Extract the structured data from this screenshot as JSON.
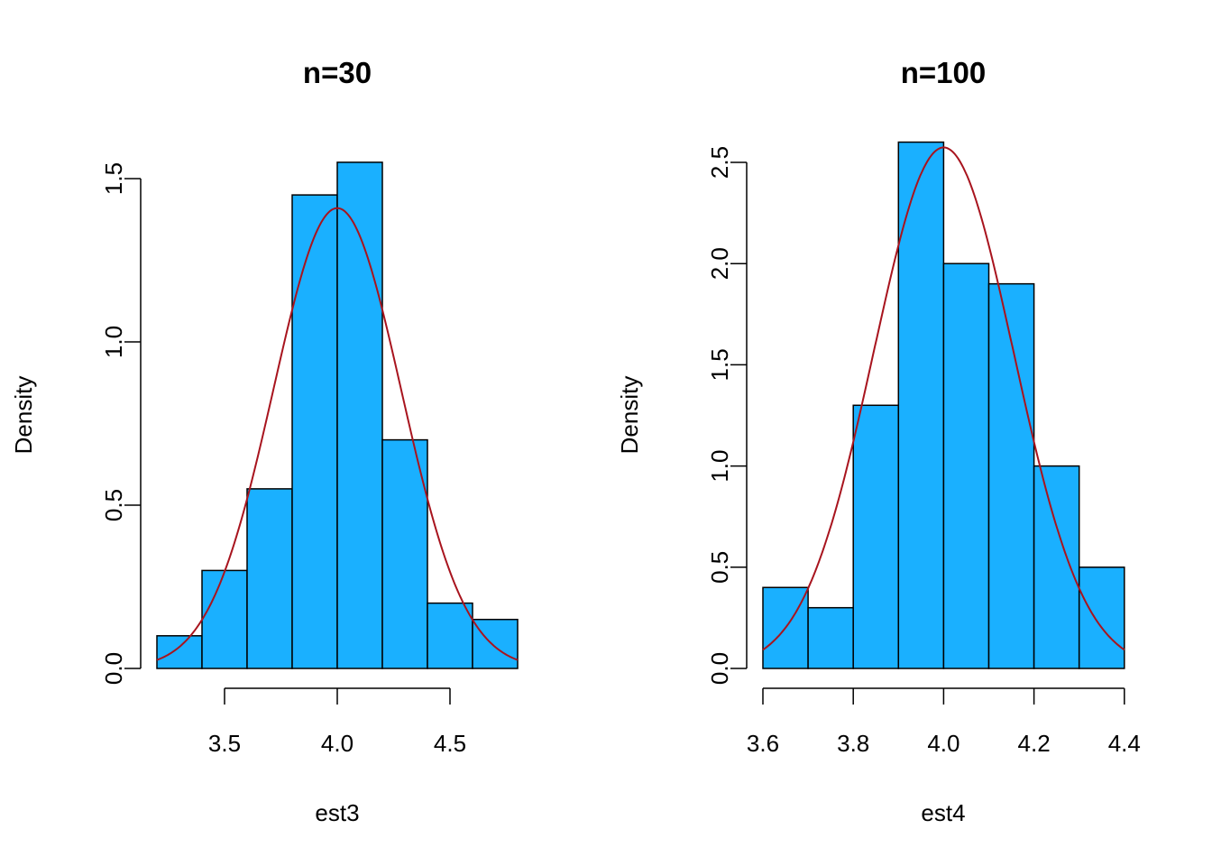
{
  "colors": {
    "bar_fill": "#1AB0FF",
    "bar_stroke": "#000000",
    "curve": "#A8141E"
  },
  "chart_data": [
    {
      "type": "bar",
      "title": "n=30",
      "xlabel": "est3",
      "ylabel": "Density",
      "bin_edges": [
        3.2,
        3.4,
        3.6,
        3.8,
        4.0,
        4.2,
        4.4,
        4.6,
        4.8
      ],
      "values": [
        0.1,
        0.3,
        0.55,
        1.45,
        1.55,
        0.7,
        0.2,
        0.15
      ],
      "xticks": [
        "3.5",
        "4.0",
        "4.5"
      ],
      "yticks": [
        "0.0",
        "0.5",
        "1.0",
        "1.5"
      ],
      "xlim": [
        3.2,
        4.8
      ],
      "ylim": [
        0,
        1.55
      ],
      "overlay_curve": {
        "type": "normal_density",
        "mean": 4.0,
        "sd": 0.283
      }
    },
    {
      "type": "bar",
      "title": "n=100",
      "xlabel": "est4",
      "ylabel": "Density",
      "bin_edges": [
        3.6,
        3.7,
        3.8,
        3.9,
        4.0,
        4.1,
        4.2,
        4.3,
        4.4
      ],
      "values": [
        0.4,
        0.3,
        1.3,
        2.6,
        2.0,
        1.9,
        1.0,
        0.5
      ],
      "xticks": [
        "3.6",
        "3.8",
        "4.0",
        "4.2",
        "4.4"
      ],
      "yticks": [
        "0.0",
        "0.5",
        "1.0",
        "1.5",
        "2.0",
        "2.5"
      ],
      "xlim": [
        3.6,
        4.4
      ],
      "ylim": [
        0,
        2.6
      ],
      "overlay_curve": {
        "type": "normal_density",
        "mean": 4.0,
        "sd": 0.155
      }
    }
  ]
}
